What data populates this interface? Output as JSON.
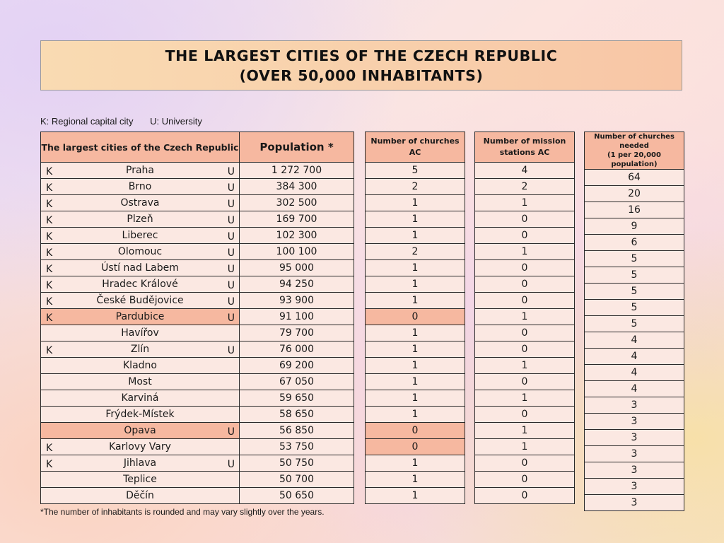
{
  "title": {
    "line1": "THE LARGEST CITIES OF THE CZECH REPUBLIC",
    "line2": "(OVER 50,000 INHABITANTS)"
  },
  "legend": {
    "k": "K: Regional capital city",
    "u": "U: University"
  },
  "headers": {
    "city": "The largest cities of the Czech Republic",
    "population": "Population *",
    "churches": "Number of churches AC",
    "missions": "Number of mission stations AC",
    "needed_line1": "Number of churches",
    "needed_line2": "needed",
    "needed_line3": "(1 per 20,000 population)"
  },
  "rows": [
    {
      "k": "K",
      "city": "Praha",
      "u": "U",
      "population": "1 272 700",
      "churches": "5",
      "missions": "4",
      "needed": "64"
    },
    {
      "k": "K",
      "city": "Brno",
      "u": "U",
      "population": "384 300",
      "churches": "2",
      "missions": "2",
      "needed": "20"
    },
    {
      "k": "K",
      "city": "Ostrava",
      "u": "U",
      "population": "302 500",
      "churches": "1",
      "missions": "1",
      "needed": "16"
    },
    {
      "k": "K",
      "city": "Plzeň",
      "u": "U",
      "population": "169 700",
      "churches": "1",
      "missions": "0",
      "needed": "9"
    },
    {
      "k": "K",
      "city": "Liberec",
      "u": "U",
      "population": "102 300",
      "churches": "1",
      "missions": "0",
      "needed": "6"
    },
    {
      "k": "K",
      "city": "Olomouc",
      "u": "U",
      "population": "100 100",
      "churches": "2",
      "missions": "1",
      "needed": "5"
    },
    {
      "k": "K",
      "city": "Ústí nad Labem",
      "u": "U",
      "population": "95 000",
      "churches": "1",
      "missions": "0",
      "needed": "5"
    },
    {
      "k": "K",
      "city": "Hradec Králové",
      "u": "U",
      "population": "94 250",
      "churches": "1",
      "missions": "0",
      "needed": "5"
    },
    {
      "k": "K",
      "city": "České Budějovice",
      "u": "U",
      "population": "93 900",
      "churches": "1",
      "missions": "0",
      "needed": "5"
    },
    {
      "k": "K",
      "city": "Pardubice",
      "u": "U",
      "population": "91 100",
      "churches": "0",
      "missions": "1",
      "needed": "5"
    },
    {
      "k": "",
      "city": "Havířov",
      "u": "",
      "population": "79 700",
      "churches": "1",
      "missions": "0",
      "needed": "4"
    },
    {
      "k": "K",
      "city": "Zlín",
      "u": "U",
      "population": "76 000",
      "churches": "1",
      "missions": "0",
      "needed": "4"
    },
    {
      "k": "",
      "city": "Kladno",
      "u": "",
      "population": "69 200",
      "churches": "1",
      "missions": "1",
      "needed": "4"
    },
    {
      "k": "",
      "city": "Most",
      "u": "",
      "population": "67 050",
      "churches": "1",
      "missions": "0",
      "needed": "4"
    },
    {
      "k": "",
      "city": "Karviná",
      "u": "",
      "population": "59 650",
      "churches": "1",
      "missions": "1",
      "needed": "3"
    },
    {
      "k": "",
      "city": "Frýdek-Místek",
      "u": "",
      "population": "58 650",
      "churches": "1",
      "missions": "0",
      "needed": "3"
    },
    {
      "k": "",
      "city": "Opava",
      "u": "U",
      "population": "56 850",
      "churches": "0",
      "missions": "1",
      "needed": "3"
    },
    {
      "k": "K",
      "city": "Karlovy Vary",
      "u": "",
      "population": "53 750",
      "churches": "0",
      "missions": "1",
      "needed": "3"
    },
    {
      "k": "K",
      "city": "Jihlava",
      "u": "U",
      "population": "50 750",
      "churches": "1",
      "missions": "0",
      "needed": "3"
    },
    {
      "k": "",
      "city": "Teplice",
      "u": "",
      "population": "50 700",
      "churches": "1",
      "missions": "0",
      "needed": "3"
    },
    {
      "k": "",
      "city": "Děčín",
      "u": "",
      "population": "50 650",
      "churches": "1",
      "missions": "0",
      "needed": "3"
    }
  ],
  "footnote": "*The number of inhabitants is rounded and may vary slightly over the years.",
  "colors": {
    "header_fill": "#f6b8a0",
    "cell_fill": "#fbe8e2",
    "highlight_fill": "#f6b8a0",
    "title_fill_left": "#f9dbb2",
    "title_fill_right": "#f8c6a6"
  }
}
